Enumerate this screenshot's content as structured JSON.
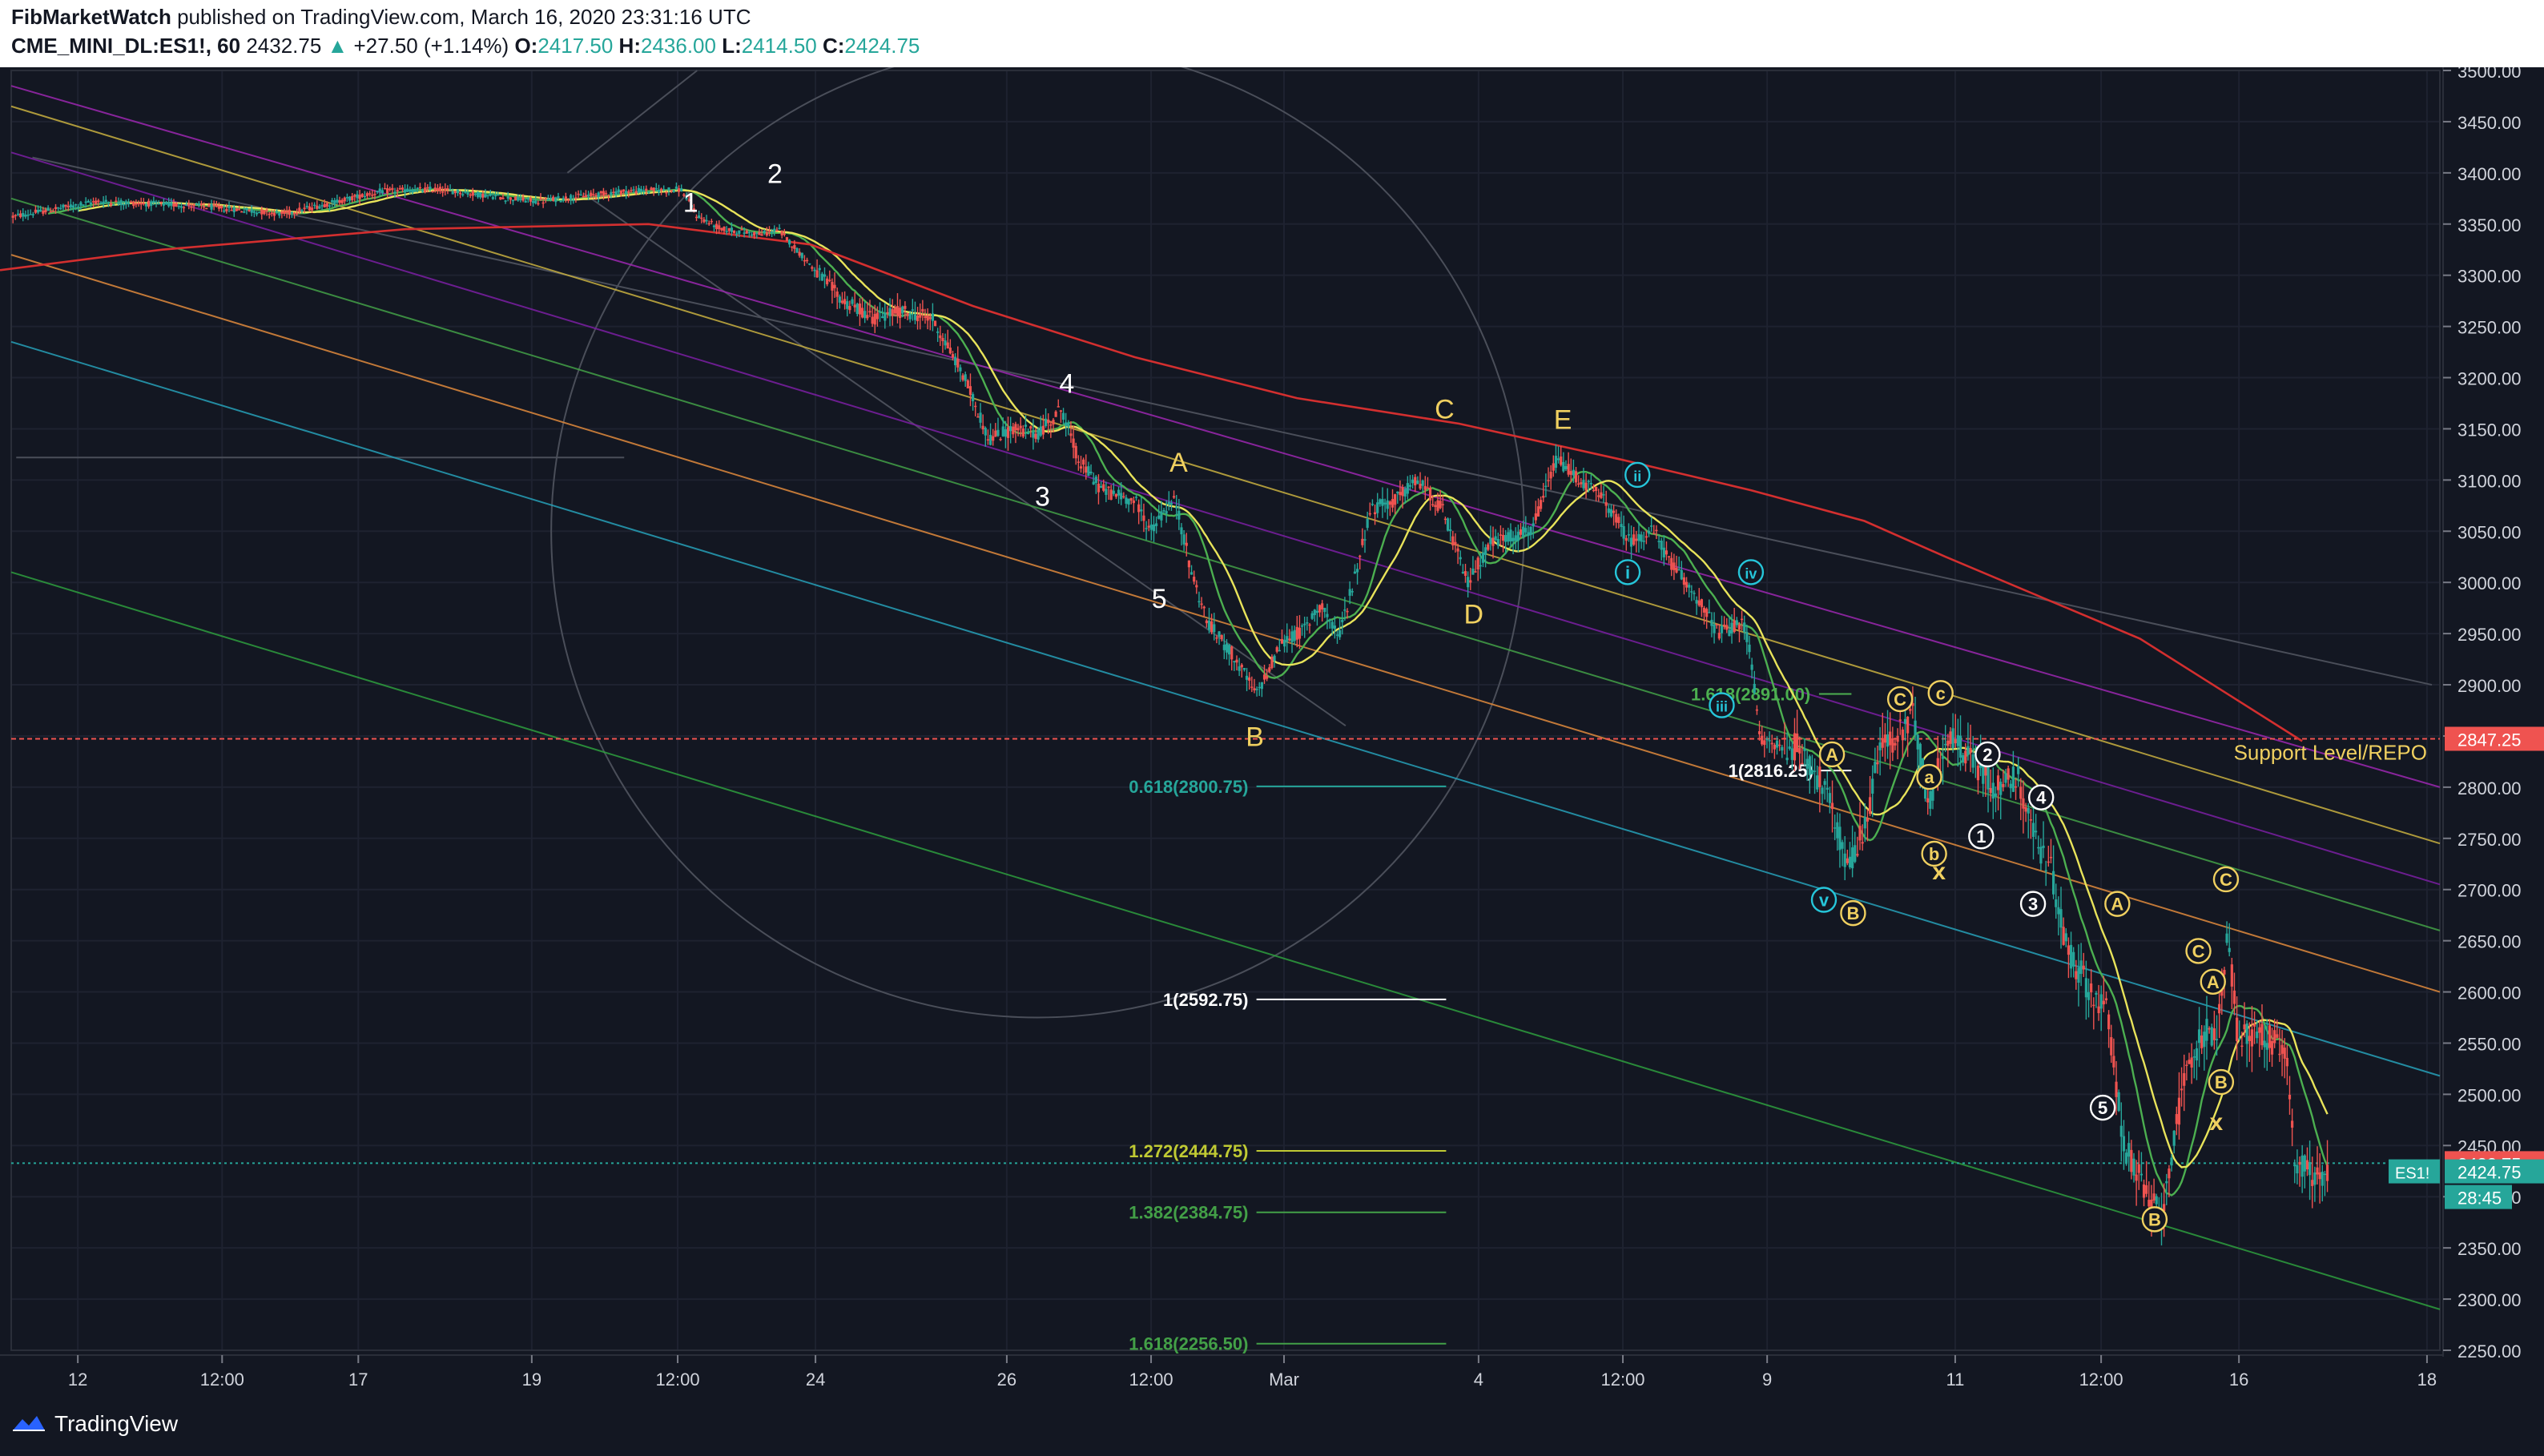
{
  "header": {
    "author": "FibMarketWatch",
    "published_text": "published on TradingView.com, March 16, 2020 23:31:16 UTC",
    "symbol": "CME_MINI_DL:ES1!, 60",
    "last": "2432.75",
    "change_arrow": "▲",
    "change": "+27.50 (+1.14%)",
    "o_label": "O:",
    "o_value": "2417.50",
    "h_label": "H:",
    "h_value": "2436.00",
    "l_label": "L:",
    "l_value": "2414.50",
    "c_label": "C:",
    "c_value": "2424.75"
  },
  "footer": {
    "brand": "TradingView",
    "brand_icon": "tradingview-logo-icon"
  },
  "chart_data": {
    "type": "candlestick",
    "symbol": "ES1!",
    "timeframe": "60",
    "ylim": [
      2250,
      3500
    ],
    "y_ticks": [
      "2250.00",
      "2300.00",
      "2350.00",
      "2400.00",
      "2450.00",
      "2500.00",
      "2550.00",
      "2600.00",
      "2650.00",
      "2700.00",
      "2750.00",
      "2800.00",
      "2850.00",
      "2900.00",
      "2950.00",
      "3000.00",
      "3050.00",
      "3100.00",
      "3150.00",
      "3200.00",
      "3250.00",
      "3300.00",
      "3350.00",
      "3400.00",
      "3450.00",
      "3500.00"
    ],
    "x_ticks": [
      "12",
      "12:00",
      "17",
      "19",
      "12:00",
      "24",
      "26",
      "12:00",
      "Mar",
      "4",
      "12:00",
      "9",
      "11",
      "12:00",
      "16",
      "18"
    ],
    "colors": {
      "up": "#26a69a",
      "down": "#ef5350",
      "background": "#131722",
      "ma_yellow": "#e8e35a",
      "ma_green": "#4caf50",
      "ma_red": "#d32f2f"
    },
    "price_path": [
      [
        0,
        3355
      ],
      [
        60,
        3372
      ],
      [
        120,
        3368
      ],
      [
        175,
        3360
      ],
      [
        235,
        3382
      ],
      [
        270,
        3384
      ],
      [
        330,
        3372
      ],
      [
        385,
        3382
      ],
      [
        420,
        3384
      ],
      [
        430,
        3358
      ],
      [
        445,
        3345
      ],
      [
        470,
        3340
      ],
      [
        480,
        3345
      ],
      [
        500,
        3310
      ],
      [
        520,
        3275
      ],
      [
        540,
        3258
      ],
      [
        555,
        3265
      ],
      [
        575,
        3258
      ],
      [
        595,
        3200
      ],
      [
        610,
        3140
      ],
      [
        625,
        3150
      ],
      [
        640,
        3145
      ],
      [
        655,
        3170
      ],
      [
        665,
        3120
      ],
      [
        680,
        3090
      ],
      [
        700,
        3080
      ],
      [
        710,
        3050
      ],
      [
        718,
        3070
      ],
      [
        725,
        3080
      ],
      [
        735,
        3010
      ],
      [
        745,
        2960
      ],
      [
        760,
        2930
      ],
      [
        775,
        2890
      ],
      [
        790,
        2940
      ],
      [
        805,
        2955
      ],
      [
        815,
        2980
      ],
      [
        825,
        2945
      ],
      [
        835,
        3000
      ],
      [
        845,
        3070
      ],
      [
        860,
        3080
      ],
      [
        875,
        3100
      ],
      [
        890,
        3070
      ],
      [
        905,
        3000
      ],
      [
        920,
        3040
      ],
      [
        945,
        3050
      ],
      [
        960,
        3120
      ],
      [
        975,
        3100
      ],
      [
        990,
        3080
      ],
      [
        1005,
        3040
      ],
      [
        1020,
        3050
      ],
      [
        1030,
        3020
      ],
      [
        1045,
        2990
      ],
      [
        1060,
        2950
      ],
      [
        1075,
        2960
      ],
      [
        1080,
        2930
      ],
      [
        1085,
        2850
      ],
      [
        1095,
        2840
      ],
      [
        1110,
        2840
      ],
      [
        1125,
        2800
      ],
      [
        1140,
        2720
      ],
      [
        1150,
        2760
      ],
      [
        1160,
        2840
      ],
      [
        1170,
        2850
      ],
      [
        1180,
        2870
      ],
      [
        1190,
        2780
      ],
      [
        1200,
        2850
      ],
      [
        1215,
        2830
      ],
      [
        1230,
        2800
      ],
      [
        1245,
        2810
      ],
      [
        1255,
        2750
      ],
      [
        1265,
        2720
      ],
      [
        1275,
        2640
      ],
      [
        1290,
        2600
      ],
      [
        1300,
        2580
      ],
      [
        1310,
        2450
      ],
      [
        1325,
        2400
      ],
      [
        1333,
        2380
      ],
      [
        1340,
        2450
      ],
      [
        1350,
        2530
      ],
      [
        1360,
        2560
      ],
      [
        1368,
        2560
      ],
      [
        1374,
        2660
      ],
      [
        1380,
        2560
      ],
      [
        1395,
        2560
      ],
      [
        1410,
        2540
      ],
      [
        1415,
        2440
      ],
      [
        1425,
        2420
      ],
      [
        1435,
        2424
      ]
    ],
    "annotations": [
      {
        "text": "1",
        "x": 426,
        "price": 3362,
        "color": "#ffffff"
      },
      {
        "text": "2",
        "x": 478,
        "price": 3390,
        "color": "#ffffff"
      },
      {
        "text": "3",
        "x": 643,
        "price": 3075,
        "color": "#ffffff"
      },
      {
        "text": "4",
        "x": 658,
        "price": 3185,
        "color": "#ffffff"
      },
      {
        "text": "5",
        "x": 715,
        "price": 2975,
        "color": "#ffffff"
      },
      {
        "text": "A",
        "x": 727,
        "price": 3108,
        "color": "#f0d060"
      },
      {
        "text": "B",
        "x": 774,
        "price": 2840,
        "color": "#f0d060"
      },
      {
        "text": "C",
        "x": 891,
        "price": 3160,
        "color": "#f0d060"
      },
      {
        "text": "D",
        "x": 909,
        "price": 2960,
        "color": "#f0d060"
      },
      {
        "text": "E",
        "x": 964,
        "price": 3150,
        "color": "#f0d060"
      },
      {
        "text": "x",
        "x": 1196,
        "price": 2710,
        "color": "#f0d060"
      },
      {
        "text": "x",
        "x": 1367,
        "price": 2465,
        "color": "#f0d060"
      }
    ],
    "circle_labels": [
      {
        "text": "ii",
        "x": 1010,
        "price": 3105,
        "color": "#26c6da"
      },
      {
        "text": "i",
        "x": 1004,
        "price": 3010,
        "color": "#26c6da"
      },
      {
        "text": "iv",
        "x": 1080,
        "price": 3010,
        "color": "#26c6da"
      },
      {
        "text": "iii",
        "x": 1062,
        "price": 2880,
        "color": "#26c6da"
      },
      {
        "text": "v",
        "x": 1125,
        "price": 2690,
        "color": "#26c6da"
      },
      {
        "text": "A",
        "x": 1130,
        "price": 2832,
        "color": "#f0d060"
      },
      {
        "text": "B",
        "x": 1143,
        "price": 2677,
        "color": "#f0d060"
      },
      {
        "text": "C",
        "x": 1172,
        "price": 2886,
        "color": "#f0d060"
      },
      {
        "text": "c",
        "x": 1197,
        "price": 2892,
        "color": "#f0d060"
      },
      {
        "text": "a",
        "x": 1190,
        "price": 2810,
        "color": "#f0d060"
      },
      {
        "text": "b",
        "x": 1193,
        "price": 2735,
        "color": "#f0d060"
      },
      {
        "text": "2",
        "x": 1226,
        "price": 2832,
        "color": "#ffffff"
      },
      {
        "text": "4",
        "x": 1259,
        "price": 2790,
        "color": "#ffffff"
      },
      {
        "text": "1",
        "x": 1222,
        "price": 2752,
        "color": "#ffffff"
      },
      {
        "text": "3",
        "x": 1254,
        "price": 2686,
        "color": "#ffffff"
      },
      {
        "text": "5",
        "x": 1297,
        "price": 2487,
        "color": "#ffffff"
      },
      {
        "text": "A",
        "x": 1306,
        "price": 2686,
        "color": "#f0d060"
      },
      {
        "text": "C",
        "x": 1356,
        "price": 2640,
        "color": "#f0d060"
      },
      {
        "text": "C",
        "x": 1373,
        "price": 2710,
        "color": "#f0d060"
      },
      {
        "text": "A",
        "x": 1365,
        "price": 2610,
        "color": "#f0d060"
      },
      {
        "text": "B",
        "x": 1370,
        "price": 2512,
        "color": "#f0d060"
      },
      {
        "text": "B",
        "x": 1329,
        "price": 2378,
        "color": "#f0d060"
      }
    ],
    "fib_levels": [
      {
        "label": "0.618(2800.75)",
        "price": 2800.75,
        "color": "#26a69a"
      },
      {
        "label": "1(2592.75)",
        "price": 2592.75,
        "color": "#ffffff"
      },
      {
        "label": "1.272(2444.75)",
        "price": 2444.75,
        "color": "#c0ca33"
      },
      {
        "label": "1.382(2384.75)",
        "price": 2384.75,
        "color": "#43a047"
      },
      {
        "label": "1.618(2256.50)",
        "price": 2256.5,
        "color": "#43a047"
      }
    ],
    "fib_levels_2": [
      {
        "label": "1.618(2891.00)",
        "price": 2891,
        "color": "#4caf50"
      },
      {
        "label": "1(2816.25)",
        "price": 2816.25,
        "color": "#ffffff"
      }
    ],
    "support": {
      "label": "Support Level/REPO",
      "price": 2847.25,
      "badge": "2847.25",
      "color": "#ef5350",
      "text_color": "#f0d060"
    },
    "current_price": {
      "badge": "2432.75",
      "color": "#ef5350"
    },
    "es_badge": {
      "symbol": "ES1!",
      "value": "2424.75",
      "countdown": "28:45",
      "color": "#26a69a"
    }
  }
}
